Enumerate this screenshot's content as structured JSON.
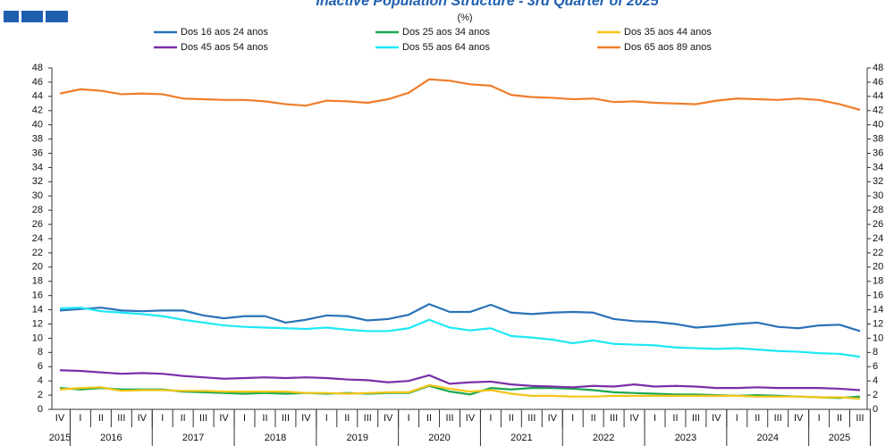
{
  "chart_data": {
    "type": "line",
    "title": "Inactive Population Structure - 3rd Quarter of 2025",
    "subtitle": "(%)",
    "categories": [
      "IV",
      "I",
      "II",
      "III",
      "IV",
      "I",
      "II",
      "III",
      "IV",
      "I",
      "II",
      "III",
      "IV",
      "I",
      "II",
      "III",
      "IV",
      "I",
      "II",
      "III",
      "IV",
      "I",
      "II",
      "III",
      "IV",
      "I",
      "II",
      "III",
      "IV",
      "I",
      "II",
      "III",
      "IV",
      "I",
      "II",
      "III",
      "IV",
      "I",
      "II",
      "III"
    ],
    "years": [
      "2015",
      "2016",
      "2017",
      "2018",
      "2019",
      "2020",
      "2021",
      "2022",
      "2023",
      "2024",
      "2025"
    ],
    "ylim": [
      0,
      48
    ],
    "yticks": [
      0,
      2,
      4,
      6,
      8,
      10,
      12,
      14,
      16,
      18,
      20,
      22,
      24,
      26,
      28,
      30,
      32,
      34,
      36,
      38,
      40,
      42,
      44,
      46,
      48
    ],
    "series": [
      {
        "name": "Dos 16 aos 24 anos",
        "color": "#2a72b8",
        "values": [
          13.9,
          14.1,
          14.3,
          13.9,
          13.8,
          13.9,
          13.9,
          13.2,
          12.8,
          13.1,
          13.1,
          12.2,
          12.6,
          13.2,
          13.1,
          12.5,
          12.7,
          13.3,
          14.8,
          13.7,
          13.7,
          14.7,
          13.6,
          13.4,
          13.6,
          13.7,
          13.6,
          12.7,
          12.4,
          12.3,
          12.0,
          11.5,
          11.7,
          12.0,
          12.2,
          11.6,
          11.4,
          11.8,
          11.9,
          11.0
        ]
      },
      {
        "name": "Dos 25 aos 34 anos",
        "color": "#1aa84f",
        "values": [
          3.0,
          2.8,
          3.0,
          2.8,
          2.8,
          2.8,
          2.5,
          2.4,
          2.3,
          2.2,
          2.3,
          2.2,
          2.3,
          2.2,
          2.3,
          2.2,
          2.3,
          2.3,
          3.3,
          2.5,
          2.1,
          3.0,
          2.8,
          3.0,
          3.0,
          2.9,
          2.7,
          2.4,
          2.3,
          2.2,
          2.1,
          2.1,
          2.0,
          1.9,
          2.0,
          1.9,
          1.8,
          1.7,
          1.6,
          1.8
        ]
      },
      {
        "name": "Dos 35 aos 44 anos",
        "color": "#f5c518",
        "values": [
          2.8,
          3.0,
          3.1,
          2.6,
          2.7,
          2.7,
          2.6,
          2.6,
          2.5,
          2.5,
          2.5,
          2.5,
          2.3,
          2.3,
          2.2,
          2.3,
          2.4,
          2.4,
          3.4,
          2.9,
          2.5,
          2.7,
          2.2,
          1.9,
          1.9,
          1.8,
          1.8,
          1.9,
          1.9,
          1.9,
          1.9,
          1.9,
          1.9,
          1.9,
          1.8,
          1.8,
          1.8,
          1.7,
          1.7,
          1.5
        ]
      },
      {
        "name": "Dos 45 aos 54 anos",
        "color": "#7a2fa8",
        "values": [
          5.5,
          5.4,
          5.2,
          5.0,
          5.1,
          5.0,
          4.7,
          4.5,
          4.3,
          4.4,
          4.5,
          4.4,
          4.5,
          4.4,
          4.2,
          4.1,
          3.8,
          4.0,
          4.8,
          3.6,
          3.8,
          3.9,
          3.5,
          3.3,
          3.2,
          3.1,
          3.3,
          3.2,
          3.5,
          3.2,
          3.3,
          3.2,
          3.0,
          3.0,
          3.1,
          3.0,
          3.0,
          3.0,
          2.9,
          2.7
        ]
      },
      {
        "name": "Dos 55 aos 64 anos",
        "color": "#1ee8f5",
        "values": [
          14.2,
          14.3,
          13.8,
          13.6,
          13.4,
          13.1,
          12.6,
          12.2,
          11.8,
          11.6,
          11.5,
          11.4,
          11.3,
          11.5,
          11.2,
          11.0,
          11.0,
          11.4,
          12.6,
          11.5,
          11.1,
          11.4,
          10.3,
          10.1,
          9.8,
          9.3,
          9.7,
          9.2,
          9.1,
          9.0,
          8.7,
          8.6,
          8.5,
          8.6,
          8.4,
          8.2,
          8.1,
          7.9,
          7.8,
          7.4
        ]
      },
      {
        "name": "Dos 65 aos 89 anos",
        "color": "#f07d2a",
        "values": [
          44.4,
          45.0,
          44.8,
          44.3,
          44.4,
          44.3,
          43.7,
          43.6,
          43.5,
          43.5,
          43.3,
          42.9,
          42.7,
          43.4,
          43.3,
          43.1,
          43.6,
          44.5,
          46.4,
          46.2,
          45.7,
          45.5,
          44.2,
          43.9,
          43.8,
          43.6,
          43.7,
          43.2,
          43.3,
          43.1,
          43.0,
          42.9,
          43.4,
          43.7,
          43.6,
          43.5,
          43.7,
          43.5,
          42.9,
          42.1
        ]
      }
    ]
  }
}
